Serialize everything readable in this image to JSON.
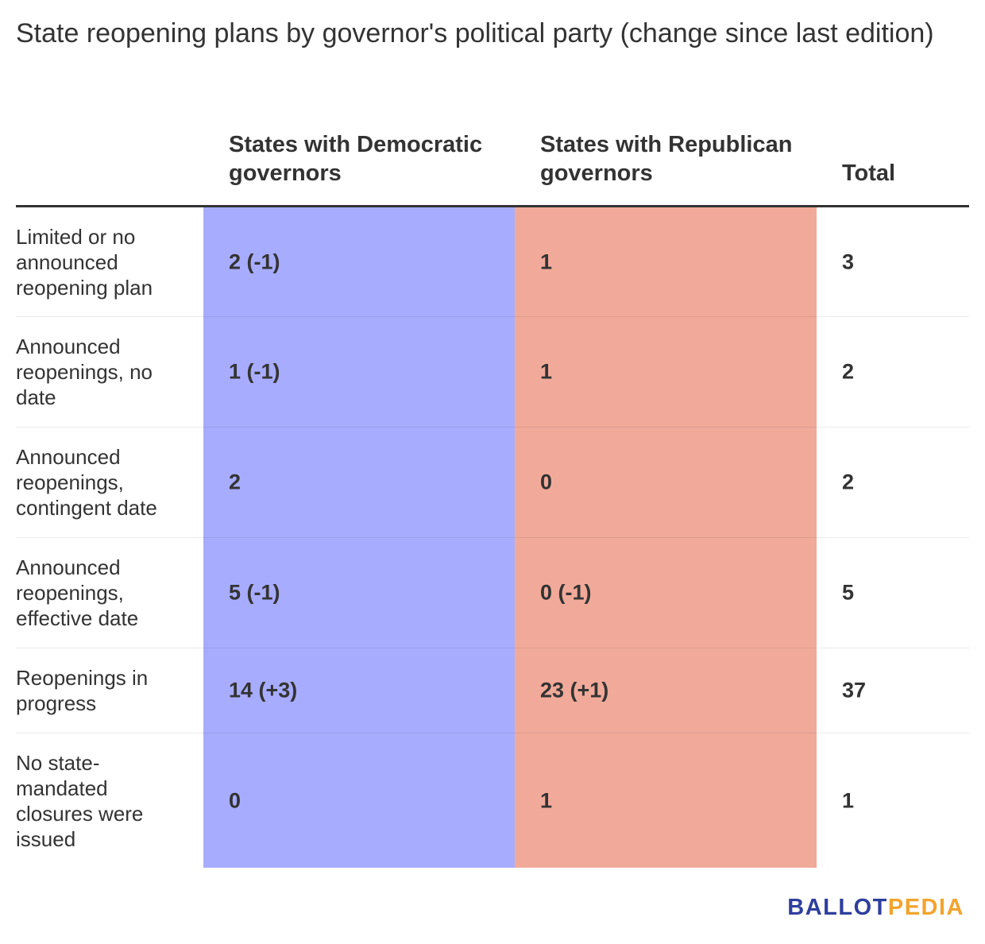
{
  "title": "State reopening plans by governor's political party (change since last edition)",
  "colors": {
    "democratic": "#a8acfe",
    "republican": "#f1aa9a",
    "text": "#333333",
    "logo_primary": "#2e3f9e",
    "logo_accent": "#f2a42e"
  },
  "chart_data": {
    "type": "table",
    "columns": [
      "",
      "States with Democratic governors",
      "States with Republican governors",
      "Total"
    ],
    "rows": [
      {
        "label": "Limited or no announced reopening plan",
        "dem": "2 (-1)",
        "rep": "1",
        "total": "3"
      },
      {
        "label": "Announced reopenings, no date",
        "dem": "1 (-1)",
        "rep": "1",
        "total": "2"
      },
      {
        "label": "Announced reopenings, contingent date",
        "dem": "2",
        "rep": "0",
        "total": "2"
      },
      {
        "label": "Announced reopenings, effective date",
        "dem": "5 (-1)",
        "rep": "0 (-1)",
        "total": "5"
      },
      {
        "label": "Reopenings in progress",
        "dem": "14 (+3)",
        "rep": "23 (+1)",
        "total": "37"
      },
      {
        "label": "No state-mandated closures were issued",
        "dem": "0",
        "rep": "1",
        "total": "1"
      }
    ]
  },
  "logo": {
    "part1": "BALLOT",
    "part2": "PEDIA"
  }
}
